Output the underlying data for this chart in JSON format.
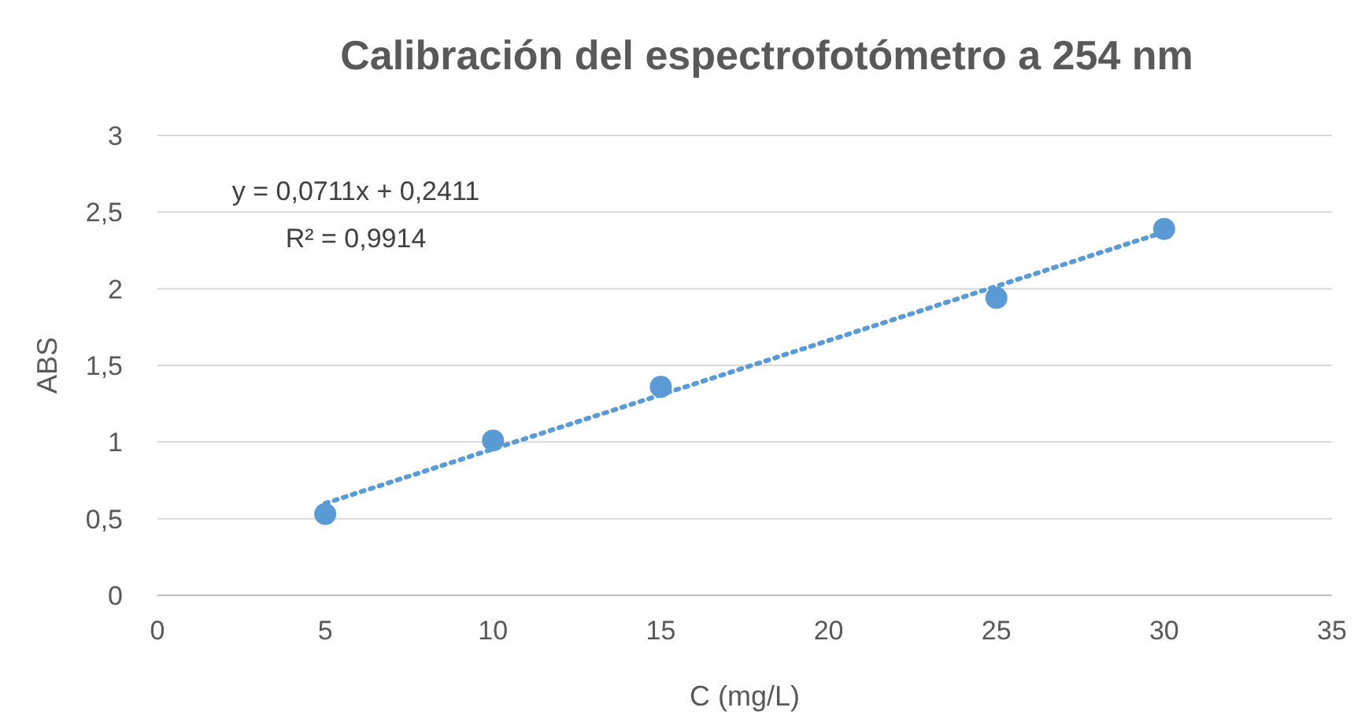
{
  "chart_data": {
    "type": "scatter",
    "title": "Calibración del espectrofotómetro a 254 nm",
    "xlabel": "C (mg/L)",
    "ylabel": "ABS",
    "annotations": [
      "y = 0,0711x + 0,2411",
      "R² = 0,9914"
    ],
    "series": [
      {
        "color": "#5b9bd5",
        "x": [
          5,
          10,
          15,
          25,
          30
        ],
        "values": [
          0.53,
          1.01,
          1.36,
          1.94,
          2.39
        ],
        "marker": "circle"
      },
      {
        "type": "line",
        "color": "#5b9bd5",
        "x": [
          5,
          30
        ],
        "values": [
          0.6,
          2.37
        ],
        "marker": "none",
        "line_style": "dotted"
      }
    ],
    "xlim": [
      0,
      35
    ],
    "xticks": [
      0,
      5,
      10,
      15,
      20,
      25,
      30,
      35
    ],
    "ylim": [
      0,
      3
    ],
    "yticks": [
      0,
      {
        "value": 0.5,
        "label": "0,5"
      },
      1,
      {
        "value": 1.5,
        "label": "1,5"
      },
      2,
      {
        "value": 2.5,
        "label": "2,5"
      },
      3
    ],
    "grid": "y"
  }
}
